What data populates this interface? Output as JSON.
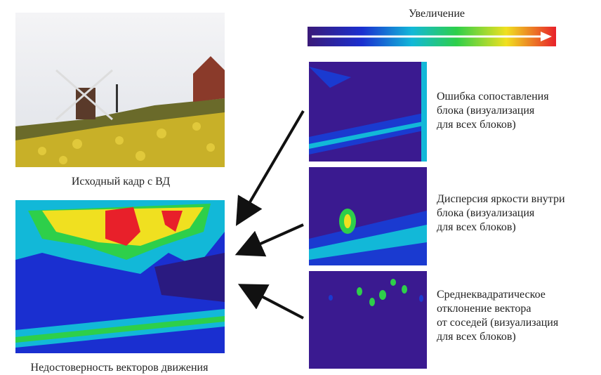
{
  "source_frame": {
    "caption": "Исходный кадр с ВД"
  },
  "result": {
    "caption": "Недостоверность векторов движения"
  },
  "scale": {
    "label": "Увеличение"
  },
  "panels": [
    {
      "lines": [
        "Ошибка сопоставления",
        "блока (визуализация",
        "для всех блоков)"
      ]
    },
    {
      "lines": [
        "Дисперсия яркости внутри",
        "блока (визуализация",
        "для всех блоков)"
      ]
    },
    {
      "lines": [
        "Среднеквадратическое",
        "отклонение вектора",
        "от соседей (визуализация",
        "для всех блоков)"
      ]
    }
  ]
}
